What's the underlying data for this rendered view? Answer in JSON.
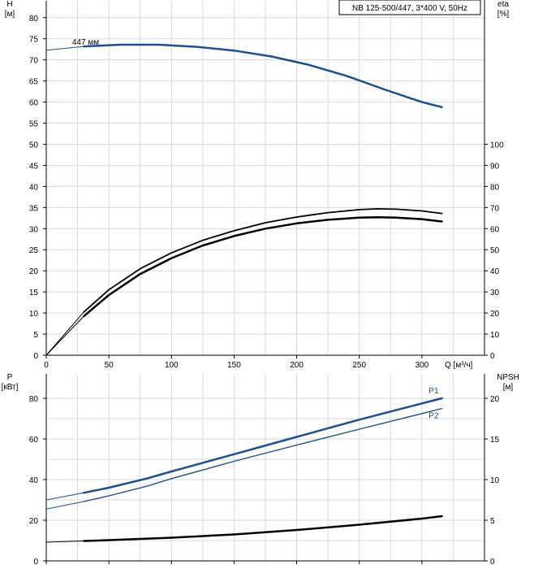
{
  "chart_data": [
    {
      "type": "line",
      "title": "NB 125-500/447, 3*400 V, 50Hz",
      "left_axis": {
        "label_line1": "H",
        "label_line2": "[м]",
        "ticks": [
          0,
          5,
          10,
          15,
          20,
          25,
          30,
          35,
          40,
          45,
          50,
          55,
          60,
          65,
          70,
          75,
          80
        ],
        "ylim": [
          0,
          84
        ]
      },
      "right_axis": {
        "label_line1": "eta",
        "label_line2": "[%]",
        "ticks": [
          0,
          10,
          20,
          30,
          40,
          50,
          60,
          70,
          80,
          90,
          100
        ],
        "ylim": [
          0,
          100
        ]
      },
      "x_axis": {
        "label": "Q [м³/ч]",
        "ticks": [
          0,
          50,
          100,
          150,
          200,
          250,
          300
        ],
        "xlim": [
          0,
          350
        ]
      },
      "grid": true,
      "annotations": [
        {
          "text": "447 мм",
          "x": 9,
          "y": 73.2
        }
      ],
      "series": [
        {
          "name": "",
          "axis": "left",
          "color": "#1f4e8c",
          "width": 2.5,
          "style": "head",
          "x": [
            0,
            30,
            60,
            90,
            120,
            150,
            180,
            210,
            240,
            270,
            300,
            316
          ],
          "y": [
            72.3,
            73.2,
            73.6,
            73.6,
            73.1,
            72.2,
            70.8,
            68.8,
            66.2,
            63.0,
            60.0,
            58.8
          ]
        },
        {
          "name": "",
          "axis": "right",
          "color": "#000000",
          "width": 1.8,
          "style": "eta",
          "x": [
            0,
            30,
            50,
            75,
            100,
            125,
            150,
            175,
            200,
            225,
            250,
            265,
            280,
            300,
            316
          ],
          "y": [
            0,
            20.5,
            31,
            41,
            48.5,
            54.5,
            59,
            62.8,
            65.5,
            67.6,
            69,
            69.4,
            69.2,
            68.4,
            67.2
          ]
        },
        {
          "name": "",
          "axis": "right",
          "color": "#000000",
          "width": 2.5,
          "style": "eta",
          "x": [
            0,
            30,
            50,
            75,
            100,
            125,
            150,
            175,
            200,
            225,
            250,
            265,
            280,
            300,
            316
          ],
          "y": [
            0,
            18.5,
            28.5,
            38.5,
            46,
            52,
            56.5,
            60,
            62.5,
            64.2,
            65.2,
            65.4,
            65.2,
            64.5,
            63.4
          ]
        }
      ]
    },
    {
      "type": "line",
      "left_axis": {
        "label_line1": "P",
        "label_line2": "[кВт]",
        "ticks": [
          0,
          20,
          40,
          60,
          80
        ],
        "ylim": [
          0,
          92
        ]
      },
      "right_axis": {
        "label_line1": "NPSH",
        "label_line2": "[м]",
        "ticks": [
          0,
          5,
          10,
          15,
          20
        ],
        "ylim": [
          0,
          23
        ]
      },
      "x_axis": {
        "xlim": [
          0,
          350
        ]
      },
      "grid": true,
      "series": [
        {
          "name": "P1",
          "axis": "left",
          "color": "#1f4e8c",
          "width": 2.5,
          "x": [
            0,
            30,
            50,
            80,
            100,
            150,
            200,
            250,
            300,
            316
          ],
          "y": [
            30,
            33.5,
            36,
            40.5,
            44,
            52.5,
            61,
            69.5,
            77.5,
            80
          ]
        },
        {
          "name": "P2",
          "axis": "left",
          "color": "#1f4e8c",
          "width": 1.4,
          "x": [
            0,
            30,
            50,
            80,
            100,
            150,
            200,
            250,
            300,
            316
          ],
          "y": [
            25.5,
            29.2,
            32,
            36.7,
            40.5,
            49,
            57,
            64.8,
            72.5,
            75
          ]
        },
        {
          "name": "",
          "axis": "right",
          "color": "#000000",
          "width": 2.5,
          "x": [
            0,
            30,
            50,
            100,
            150,
            200,
            250,
            300,
            316
          ],
          "y": [
            2.3,
            2.45,
            2.55,
            2.85,
            3.25,
            3.8,
            4.45,
            5.2,
            5.5
          ]
        }
      ]
    }
  ]
}
